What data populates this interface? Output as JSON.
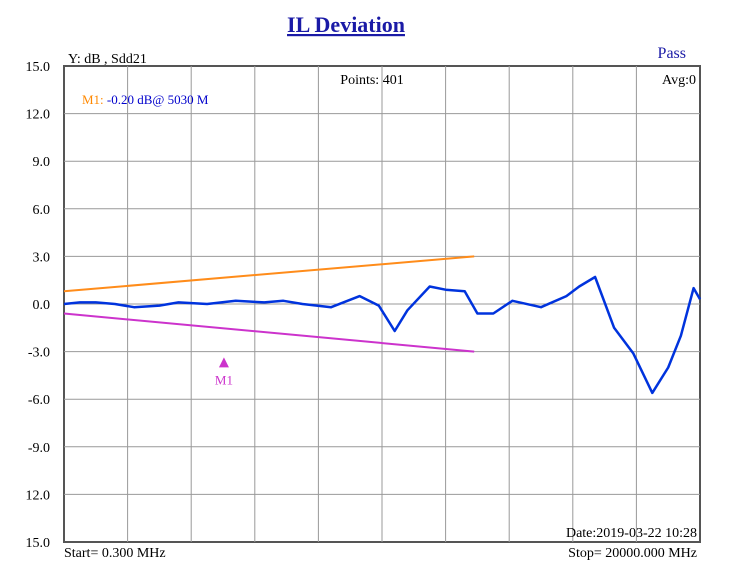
{
  "chart_data": {
    "type": "line",
    "title": "IL  Deviation",
    "y_label": "Y: dB , Sdd21",
    "ylim": [
      -15,
      15
    ],
    "y_ticks": [
      "15.0",
      "12.0",
      "9.0",
      "6.0",
      "3.0",
      "0.0",
      "-3.0",
      "-6.0",
      "-9.0",
      "12.0",
      "15.0"
    ],
    "x_range_mhz": [
      0.3,
      20000
    ],
    "start_label": "Start= 0.300 MHz",
    "stop_label": "Stop=  20000.000 MHz",
    "points_label": "Points: 401",
    "avg_label": "Avg:0",
    "status_label": "Pass",
    "date_label": "Date:2019-03-22 10:28",
    "marker": {
      "name": "M1",
      "readout": "M1: -0.20 dB@ 5030 M",
      "x_mhz": 5030,
      "y_db": -0.2,
      "color": "#cc33cc",
      "readout_color": "#ff8800",
      "readout_value_color": "#0000cc"
    },
    "series": [
      {
        "color": "#ff8c1a",
        "x": [
          0.3,
          12900
        ],
        "y": [
          0.8,
          3.0
        ]
      },
      {
        "color": "#cc33cc",
        "x": [
          0.3,
          12900
        ],
        "y": [
          -0.6,
          -3.0
        ]
      },
      {
        "color": "#0033dd",
        "x": [
          0.3,
          500,
          1000,
          1600,
          2200,
          3000,
          3600,
          4500,
          5400,
          6300,
          6900,
          7500,
          8400,
          9300,
          9900,
          10400,
          10800,
          11500,
          12000,
          12600,
          13000,
          13500,
          14100,
          15000,
          15800,
          16200,
          16700,
          17300,
          17900,
          18500,
          19000,
          19400,
          19800,
          20000
        ],
        "y": [
          0,
          0.1,
          0.1,
          0.0,
          -0.2,
          -0.1,
          0.1,
          0.0,
          0.2,
          0.1,
          0.2,
          0.0,
          -0.2,
          0.5,
          -0.1,
          -1.7,
          -0.4,
          1.1,
          0.9,
          0.8,
          -0.6,
          -0.6,
          0.2,
          -0.2,
          0.5,
          1.1,
          1.7,
          -1.5,
          -3.1,
          -5.6,
          -4.0,
          -2.0,
          1.0,
          0.3
        ]
      }
    ]
  }
}
